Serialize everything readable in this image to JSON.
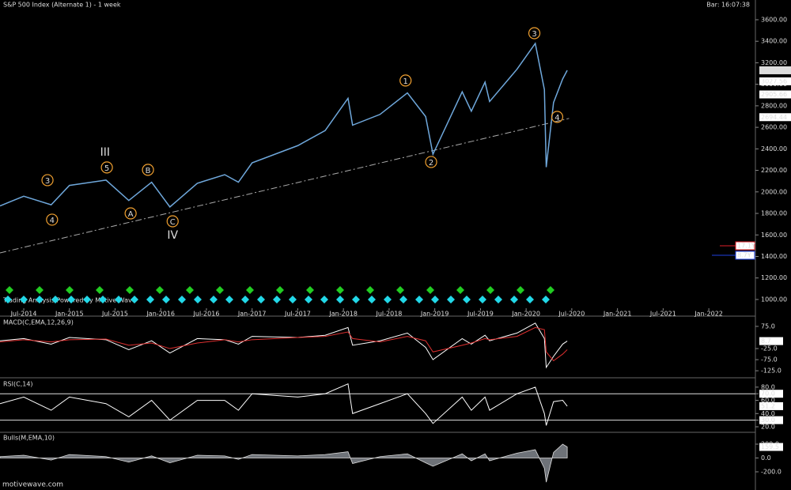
{
  "header": {
    "title": "S&P 500 Index (Alternate 1) - 1 week",
    "clock": "Bar: 16:07:38"
  },
  "footer": {
    "watermark": "Trading Analysis Powered by Motive Wave",
    "site": "motivewave.com"
  },
  "chart_data": [
    {
      "type": "line",
      "x": [
        2014.24,
        2014.5,
        2014.8,
        2015.0,
        2015.4,
        2015.65,
        2015.9,
        2016.1,
        2016.4,
        2016.7,
        2016.85,
        2017.0,
        2017.5,
        2017.8,
        2018.05,
        2018.1,
        2018.4,
        2018.7,
        2018.9,
        2018.98,
        2019.3,
        2019.4,
        2019.55,
        2019.6,
        2019.9,
        2020.1,
        2020.2,
        2020.22,
        2020.3,
        2020.4,
        2020.45
      ],
      "series": [
        {
          "color": "#6fa8dc",
          "values": [
            1870,
            1960,
            1880,
            2060,
            2110,
            1920,
            2090,
            1860,
            2080,
            2160,
            2090,
            2270,
            2430,
            2570,
            2870,
            2620,
            2720,
            2920,
            2700,
            2350,
            2930,
            2750,
            3020,
            2840,
            3140,
            3380,
            2950,
            2230,
            2830,
            3050,
            3130
          ]
        }
      ],
      "xlim": [
        2014.24,
        2022.51
      ],
      "ylim": [
        860,
        3710
      ],
      "xticks": [
        {
          "value": 2014.5,
          "label": "Jul-2014"
        },
        {
          "value": 2015.0,
          "label": "Jan-2015"
        },
        {
          "value": 2015.5,
          "label": "Jul-2015"
        },
        {
          "value": 2016.0,
          "label": "Jan-2016"
        },
        {
          "value": 2016.5,
          "label": "Jul-2016"
        },
        {
          "value": 2017.0,
          "label": "Jan-2017"
        },
        {
          "value": 2017.5,
          "label": "Jul-2017"
        },
        {
          "value": 2018.0,
          "label": "Jan-2018"
        },
        {
          "value": 2018.5,
          "label": "Jul-2018"
        },
        {
          "value": 2019.0,
          "label": "Jan-2019"
        },
        {
          "value": 2019.5,
          "label": "Jul-2019"
        },
        {
          "value": 2020.0,
          "label": "Jan-2020"
        },
        {
          "value": 2020.5,
          "label": "Jul-2020"
        },
        {
          "value": 2021.0,
          "label": "Jan-2021"
        },
        {
          "value": 2021.5,
          "label": "Jul-2021"
        },
        {
          "value": 2022.0,
          "label": "Jan-2022"
        }
      ],
      "yticks": [
        {
          "value": 1000,
          "label": "1000.00"
        },
        {
          "value": 1200,
          "label": "1200.00"
        },
        {
          "value": 1400,
          "label": "1400.00"
        },
        {
          "value": 1600,
          "label": "1600.00"
        },
        {
          "value": 1800,
          "label": "1800.00"
        },
        {
          "value": 2000,
          "label": "2000.00"
        },
        {
          "value": 2200,
          "label": "2200.00"
        },
        {
          "value": 2400,
          "label": "2400.00"
        },
        {
          "value": 2600,
          "label": "2600.00"
        },
        {
          "value": 2800,
          "label": "2800.00"
        },
        {
          "value": 3000,
          "label": "3000.00"
        },
        {
          "value": 3200,
          "label": "3200.00"
        },
        {
          "value": 3400,
          "label": "3400.00"
        },
        {
          "value": 3600,
          "label": "3600.00"
        }
      ],
      "price_labels": [
        3130.01,
        3027.56,
        2905.66,
        2694.44
      ],
      "trendline": {
        "x": [
          2014.24,
          2020.47
        ],
        "y": [
          1433,
          2683
        ]
      },
      "levels": [
        {
          "label": "17.1Y",
          "color": "#e0202a"
        },
        {
          "label": "8.7Y",
          "color": "#2040e0"
        }
      ],
      "annotations": [
        {
          "text": "3",
          "x": 2014.76,
          "y": 2109,
          "color": "#f0a030",
          "circled": true
        },
        {
          "text": "4",
          "x": 2014.81,
          "y": 1742,
          "color": "#f0a030",
          "circled": true
        },
        {
          "text": "5",
          "x": 2015.41,
          "y": 2227,
          "color": "#f0a030",
          "circled": true
        },
        {
          "text": "B",
          "x": 2015.86,
          "y": 2205,
          "color": "#f0a030",
          "circled": true
        },
        {
          "text": "A",
          "x": 2015.67,
          "y": 1800,
          "color": "#f0a030",
          "circled": true
        },
        {
          "text": "C",
          "x": 2016.13,
          "y": 1727,
          "color": "#f0a030",
          "circled": true
        },
        {
          "text": "III",
          "x": 2015.39,
          "y": 2373,
          "color": "#22dd22",
          "circled": false
        },
        {
          "text": "IV",
          "x": 2016.13,
          "y": 1602,
          "color": "#22dd22",
          "circled": false
        },
        {
          "text": "1",
          "x": 2018.68,
          "y": 3035,
          "color": "#f0a030",
          "circled": true
        },
        {
          "text": "2",
          "x": 2018.96,
          "y": 2278,
          "color": "#f0a030",
          "circled": true
        },
        {
          "text": "3",
          "x": 2020.09,
          "y": 3475,
          "color": "#f0a030",
          "circled": true
        },
        {
          "text": "4",
          "x": 2020.34,
          "y": 2697,
          "color": "#f0a030",
          "circled": true
        }
      ]
    },
    {
      "type": "line",
      "title": "MACD(C,EMA,12,26,9)",
      "x": [
        2014.24,
        2014.5,
        2014.8,
        2015.0,
        2015.4,
        2015.65,
        2015.9,
        2016.1,
        2016.4,
        2016.7,
        2016.85,
        2017.0,
        2017.5,
        2017.8,
        2018.05,
        2018.1,
        2018.4,
        2018.7,
        2018.9,
        2018.98,
        2019.3,
        2019.4,
        2019.55,
        2019.6,
        2019.9,
        2020.1,
        2020.2,
        2020.22,
        2020.3,
        2020.4,
        2020.45
      ],
      "series": [
        {
          "color": "#ffffff",
          "values": [
            10,
            20,
            -5,
            25,
            15,
            -30,
            10,
            -45,
            20,
            15,
            -5,
            30,
            25,
            35,
            70,
            -10,
            10,
            45,
            -20,
            -75,
            20,
            -5,
            35,
            10,
            45,
            90,
            20,
            -110,
            -60,
            -5,
            8.7
          ]
        },
        {
          "color": "#e03030",
          "values": [
            5,
            15,
            5,
            15,
            18,
            -10,
            0,
            -25,
            0,
            15,
            5,
            15,
            25,
            30,
            50,
            20,
            5,
            30,
            10,
            -40,
            -10,
            0,
            20,
            15,
            30,
            70,
            60,
            -40,
            -80,
            -50,
            -30
          ]
        }
      ],
      "xlim": [
        2014.24,
        2022.51
      ],
      "ylim": [
        -146,
        107
      ],
      "yticks": [
        {
          "value": 75,
          "label": "75.0"
        },
        {
          "value": -25,
          "label": "-25.0"
        },
        {
          "value": -75,
          "label": "-75.0"
        },
        {
          "value": -125,
          "label": "-125.0"
        }
      ]
    },
    {
      "type": "line",
      "title": "RSI(C,14)",
      "x": [
        2014.24,
        2014.5,
        2014.8,
        2015.0,
        2015.4,
        2015.65,
        2015.9,
        2016.1,
        2016.4,
        2016.7,
        2016.85,
        2017.0,
        2017.5,
        2017.8,
        2018.05,
        2018.1,
        2018.4,
        2018.7,
        2018.9,
        2018.98,
        2019.3,
        2019.4,
        2019.55,
        2019.6,
        2019.9,
        2020.1,
        2020.2,
        2020.22,
        2020.3,
        2020.4,
        2020.45
      ],
      "series": [
        {
          "color": "#ffffff",
          "values": [
            55,
            65,
            45,
            65,
            55,
            35,
            60,
            30,
            60,
            60,
            45,
            70,
            65,
            70,
            85,
            40,
            55,
            70,
            40,
            25,
            65,
            45,
            65,
            45,
            70,
            80,
            40,
            22,
            58,
            60,
            51.2
          ]
        }
      ],
      "xlim": [
        2014.24,
        2022.51
      ],
      "ylim": [
        14,
        89.4
      ],
      "yticks": [
        {
          "value": 80,
          "label": "80.0"
        },
        {
          "value": 70,
          "label": "70.0",
          "boxed": true
        },
        {
          "value": 60,
          "label": "60.0"
        },
        {
          "value": 40,
          "label": "40.0"
        },
        {
          "value": 30,
          "label": "30.0",
          "boxed": true
        },
        {
          "value": 20,
          "label": "20.0"
        }
      ]
    },
    {
      "type": "area",
      "title": "Bulls(M,EMA,10)",
      "x": [
        2014.24,
        2014.5,
        2014.8,
        2015.0,
        2015.4,
        2015.65,
        2015.9,
        2016.1,
        2016.4,
        2016.7,
        2016.85,
        2017.0,
        2017.5,
        2017.8,
        2018.05,
        2018.1,
        2018.4,
        2018.7,
        2018.9,
        2018.98,
        2019.3,
        2019.4,
        2019.55,
        2019.6,
        2019.9,
        2020.1,
        2020.2,
        2020.22,
        2020.3,
        2020.4,
        2020.45
      ],
      "series": [
        {
          "color": "#8a8f96",
          "values": [
            20,
            40,
            -30,
            50,
            20,
            -60,
            30,
            -70,
            40,
            30,
            -20,
            50,
            30,
            50,
            90,
            -80,
            20,
            60,
            -70,
            -120,
            60,
            -40,
            60,
            -40,
            70,
            120,
            -150,
            -350,
            80,
            200,
            159.5
          ]
        }
      ],
      "xlim": [
        2014.24,
        2022.51
      ],
      "ylim": [
        -406,
        337
      ],
      "yticks": [
        {
          "value": 200,
          "label": "200.0"
        },
        {
          "value": 0,
          "label": "0.0"
        },
        {
          "value": -200,
          "label": "-200.0"
        }
      ]
    }
  ]
}
